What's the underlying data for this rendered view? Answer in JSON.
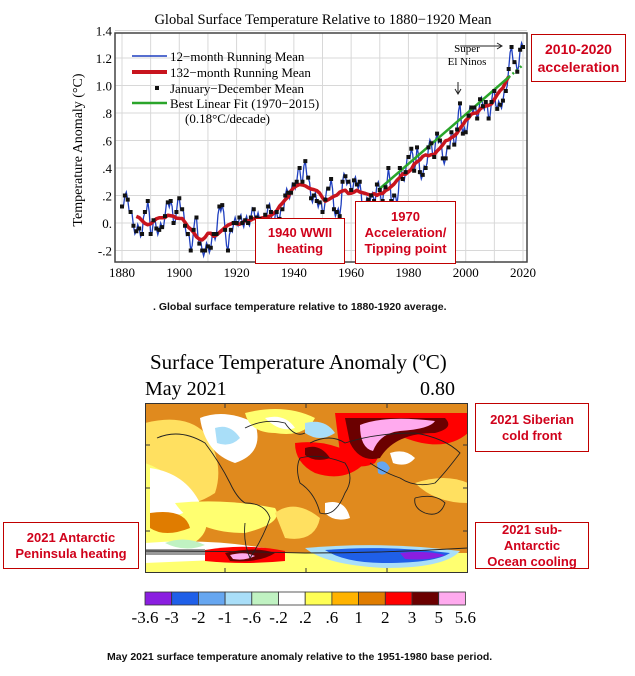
{
  "chart_data": [
    {
      "type": "line",
      "title": "Global Surface Temperature Relative to 1880−1920 Mean",
      "xlabel": "",
      "ylabel": "Temperature Anomaly (°C)",
      "xlim": [
        1880,
        2020
      ],
      "ylim": [
        -0.28,
        1.4
      ],
      "grid": true,
      "legend_placement": "top-left",
      "x_ticks": [
        "1880",
        "1900",
        "1920",
        "1940",
        "1960",
        "1980",
        "2000",
        "2020"
      ],
      "y_ticks": [
        "-.2",
        "0.",
        ".2",
        ".4",
        ".6",
        ".8",
        "1.0",
        "1.2",
        "1.4"
      ],
      "y_tick_values": [
        -0.2,
        0,
        0.2,
        0.4,
        0.6,
        0.8,
        1.0,
        1.2,
        1.4
      ],
      "legend": [
        {
          "label": "12−month Running Mean",
          "color": "#1f3fbf"
        },
        {
          "label": "132−month Running Mean",
          "color": "#c8141e"
        },
        {
          "label": "January−December Mean",
          "color": "#111111"
        },
        {
          "label": "Best Linear Fit (1970−2015)",
          "sublabel": "(0.18°C/decade)",
          "color": "#2aa52a"
        }
      ],
      "x": [
        1880,
        1881,
        1882,
        1883,
        1884,
        1885,
        1886,
        1887,
        1888,
        1889,
        1890,
        1891,
        1892,
        1893,
        1894,
        1895,
        1896,
        1897,
        1898,
        1899,
        1900,
        1901,
        1902,
        1903,
        1904,
        1905,
        1906,
        1907,
        1908,
        1909,
        1910,
        1911,
        1912,
        1913,
        1914,
        1915,
        1916,
        1917,
        1918,
        1919,
        1920,
        1921,
        1922,
        1923,
        1924,
        1925,
        1926,
        1927,
        1928,
        1929,
        1930,
        1931,
        1932,
        1933,
        1934,
        1935,
        1936,
        1937,
        1938,
        1939,
        1940,
        1941,
        1942,
        1943,
        1944,
        1945,
        1946,
        1947,
        1948,
        1949,
        1950,
        1951,
        1952,
        1953,
        1954,
        1955,
        1956,
        1957,
        1958,
        1959,
        1960,
        1961,
        1962,
        1963,
        1964,
        1965,
        1966,
        1967,
        1968,
        1969,
        1970,
        1971,
        1972,
        1973,
        1974,
        1975,
        1976,
        1977,
        1978,
        1979,
        1980,
        1981,
        1982,
        1983,
        1984,
        1985,
        1986,
        1987,
        1988,
        1989,
        1990,
        1991,
        1992,
        1993,
        1994,
        1995,
        1996,
        1997,
        1998,
        1999,
        2000,
        2001,
        2002,
        2003,
        2004,
        2005,
        2006,
        2007,
        2008,
        2009,
        2010,
        2011,
        2012,
        2013,
        2014,
        2015,
        2016,
        2017,
        2018,
        2019,
        2020
      ],
      "annual_mean": [
        0.12,
        0.2,
        0.17,
        0.08,
        -0.02,
        -0.06,
        -0.04,
        -0.08,
        0.08,
        0.16,
        -0.08,
        0.02,
        -0.04,
        -0.05,
        -0.03,
        0.05,
        0.15,
        0.16,
        0.0,
        0.08,
        0.18,
        0.1,
        -0.02,
        -0.08,
        -0.2,
        -0.05,
        0.04,
        -0.15,
        -0.2,
        -0.2,
        -0.17,
        -0.18,
        -0.08,
        -0.08,
        0.12,
        0.13,
        -0.05,
        -0.2,
        -0.05,
        0.0,
        0.0,
        0.04,
        0.0,
        0.02,
        0.0,
        0.04,
        0.1,
        0.04,
        0.03,
        -0.1,
        0.06,
        0.12,
        0.08,
        -0.04,
        0.08,
        0.03,
        0.1,
        0.2,
        0.22,
        0.22,
        0.28,
        0.3,
        0.4,
        0.3,
        0.45,
        0.33,
        0.18,
        0.2,
        0.16,
        0.15,
        0.08,
        0.17,
        0.25,
        0.32,
        0.1,
        0.08,
        0.05,
        0.3,
        0.34,
        0.3,
        0.24,
        0.31,
        0.28,
        0.3,
        0.06,
        0.12,
        0.17,
        0.2,
        0.16,
        0.28,
        0.24,
        0.16,
        0.26,
        0.4,
        0.16,
        0.2,
        0.13,
        0.4,
        0.32,
        0.37,
        0.48,
        0.54,
        0.38,
        0.55,
        0.37,
        0.35,
        0.4,
        0.55,
        0.58,
        0.48,
        0.65,
        0.6,
        0.47,
        0.47,
        0.55,
        0.66,
        0.57,
        0.68,
        0.87,
        0.65,
        0.66,
        0.78,
        0.84,
        0.84,
        0.76,
        0.9,
        0.85,
        0.88,
        0.76,
        0.88,
        0.96,
        0.83,
        0.86,
        0.89,
        0.96,
        1.12,
        1.28,
        1.17,
        1.1,
        1.26,
        1.28
      ],
      "linear_fit": {
        "x": [
          1970,
          2015
        ],
        "y": [
          0.25,
          1.06
        ],
        "extension_to": 2020,
        "slope_per_decade": 0.18
      },
      "annotations": [
        {
          "text": "Super",
          "text2": "El Ninos"
        }
      ]
    },
    {
      "type": "heatmap",
      "title": "Surface Temperature Anomaly (ºC)",
      "period": "May 2021",
      "global_mean": "0.80",
      "colorbar_labels": [
        "-3.6",
        "-3",
        "-2",
        "-1",
        "-.6",
        "-.2",
        ".2",
        ".6",
        "1",
        "2",
        "3",
        "5",
        "5.6"
      ],
      "colorbar_colors": [
        "#8a1ee0",
        "#1f5fe8",
        "#66a6f0",
        "#a9def8",
        "#c0f2c2",
        "#ffffff",
        "#ffff55",
        "#ffb300",
        "#e07c00",
        "#ff0000",
        "#6b0000",
        "#ffaaee"
      ]
    }
  ],
  "callouts": {
    "c2010": [
      "2010-2020",
      "acceleration"
    ],
    "c1940": [
      "1940 WWII",
      "heating"
    ],
    "c1970": [
      "1970",
      "Acceleration/",
      "Tipping point"
    ],
    "siberia": [
      "2021 Siberian",
      "cold front"
    ],
    "peninsula": [
      "2021 Antarctic",
      "Peninsula heating"
    ],
    "subantarctic": [
      "2021 sub-Antarctic",
      "Ocean cooling"
    ]
  },
  "captions": {
    "chart": ". Global surface temperature relative to 1880-1920 average.",
    "map": "May 2021 surface temperature anomaly relative to the 1951-1980 base period."
  }
}
